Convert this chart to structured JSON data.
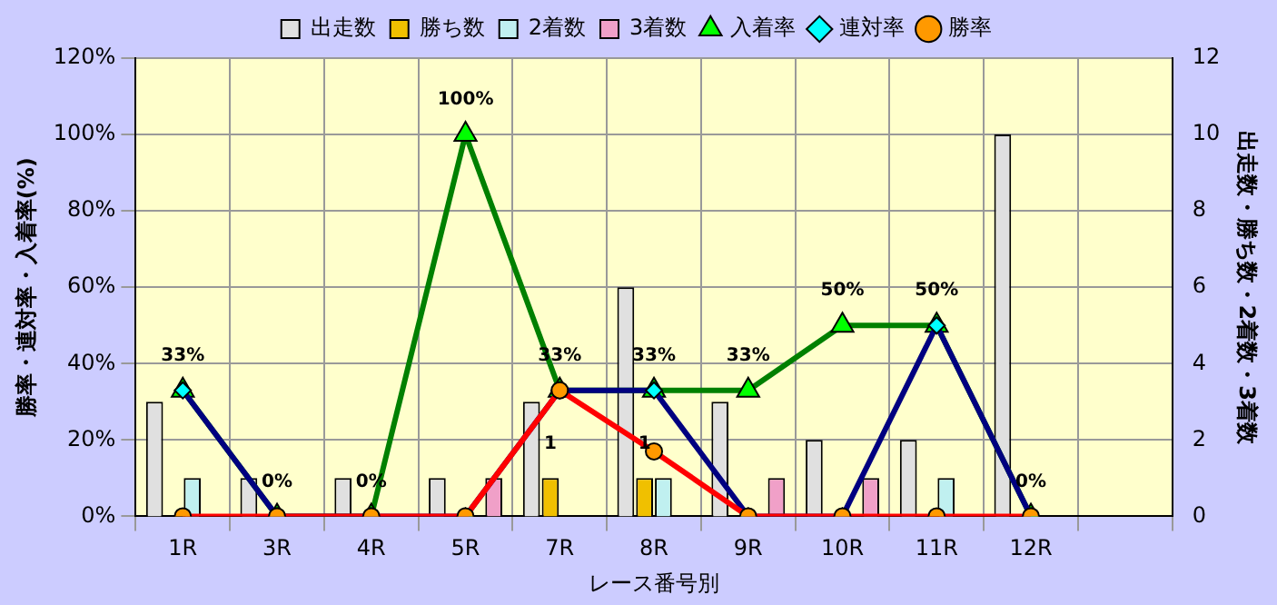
{
  "chart_data": {
    "type": "bar",
    "xlabel": "レース番号別",
    "ylabel": "勝率・連対率・入着率(%)",
    "y2label": "出走数・勝ち数・2着数・3着数",
    "categories": [
      "1R",
      "3R",
      "4R",
      "5R",
      "7R",
      "8R",
      "9R",
      "10R",
      "11R",
      "12R",
      null
    ],
    "series": [
      {
        "name": "出走数",
        "type": "bar",
        "axis": "y2",
        "color": "#e0e0e0",
        "values": [
          3,
          1,
          1,
          1,
          3,
          6,
          3,
          2,
          2,
          10,
          null
        ]
      },
      {
        "name": "勝ち数",
        "type": "bar",
        "axis": "y2",
        "color": "#f0c000",
        "values": [
          0,
          0,
          0,
          0,
          1,
          1,
          0,
          0,
          0,
          0,
          null
        ],
        "value_labels": [
          null,
          null,
          null,
          null,
          "1",
          "1",
          null,
          null,
          null,
          null,
          null
        ]
      },
      {
        "name": "2着数",
        "type": "bar",
        "axis": "y2",
        "color": "#c0f0f0",
        "values": [
          1,
          0,
          0,
          0,
          0,
          1,
          0,
          0,
          1,
          0,
          null
        ]
      },
      {
        "name": "3着数",
        "type": "bar",
        "axis": "y2",
        "color": "#f0a0c8",
        "values": [
          0,
          0,
          0,
          1,
          0,
          0,
          1,
          1,
          0,
          0,
          null
        ]
      },
      {
        "name": "入着率",
        "type": "line",
        "color": "#008000",
        "marker": "triangle",
        "values": [
          33,
          0,
          0,
          100,
          33,
          33,
          33,
          50,
          50,
          0,
          null
        ],
        "value_labels": [
          "33%",
          "0%",
          "0%",
          "100%",
          "33%",
          "33%",
          "33%",
          "50%",
          "50%",
          "0%",
          null
        ]
      },
      {
        "name": "連対率",
        "type": "line",
        "color": "#000080",
        "marker": "diamond",
        "values": [
          33,
          0,
          0,
          0,
          33,
          33,
          0,
          0,
          50,
          0,
          null
        ]
      },
      {
        "name": "勝率",
        "type": "line",
        "color": "#ff0000",
        "marker": "circle",
        "values": [
          0,
          0,
          0,
          0,
          33,
          17,
          0,
          0,
          0,
          0,
          null
        ]
      }
    ],
    "ylim": [
      0,
      120
    ],
    "yticks": [
      {
        "value": 0,
        "label": "0%"
      },
      {
        "value": 20,
        "label": "20%"
      },
      {
        "value": 40,
        "label": "40%"
      },
      {
        "value": 60,
        "label": "60%"
      },
      {
        "value": 80,
        "label": "80%"
      },
      {
        "value": 100,
        "label": "100%"
      },
      {
        "value": 120,
        "label": "120%"
      }
    ],
    "y2lim": [
      0,
      12
    ],
    "y2ticks": [
      0,
      2,
      4,
      6,
      8,
      10,
      12
    ],
    "grid": true,
    "legend": "top"
  }
}
